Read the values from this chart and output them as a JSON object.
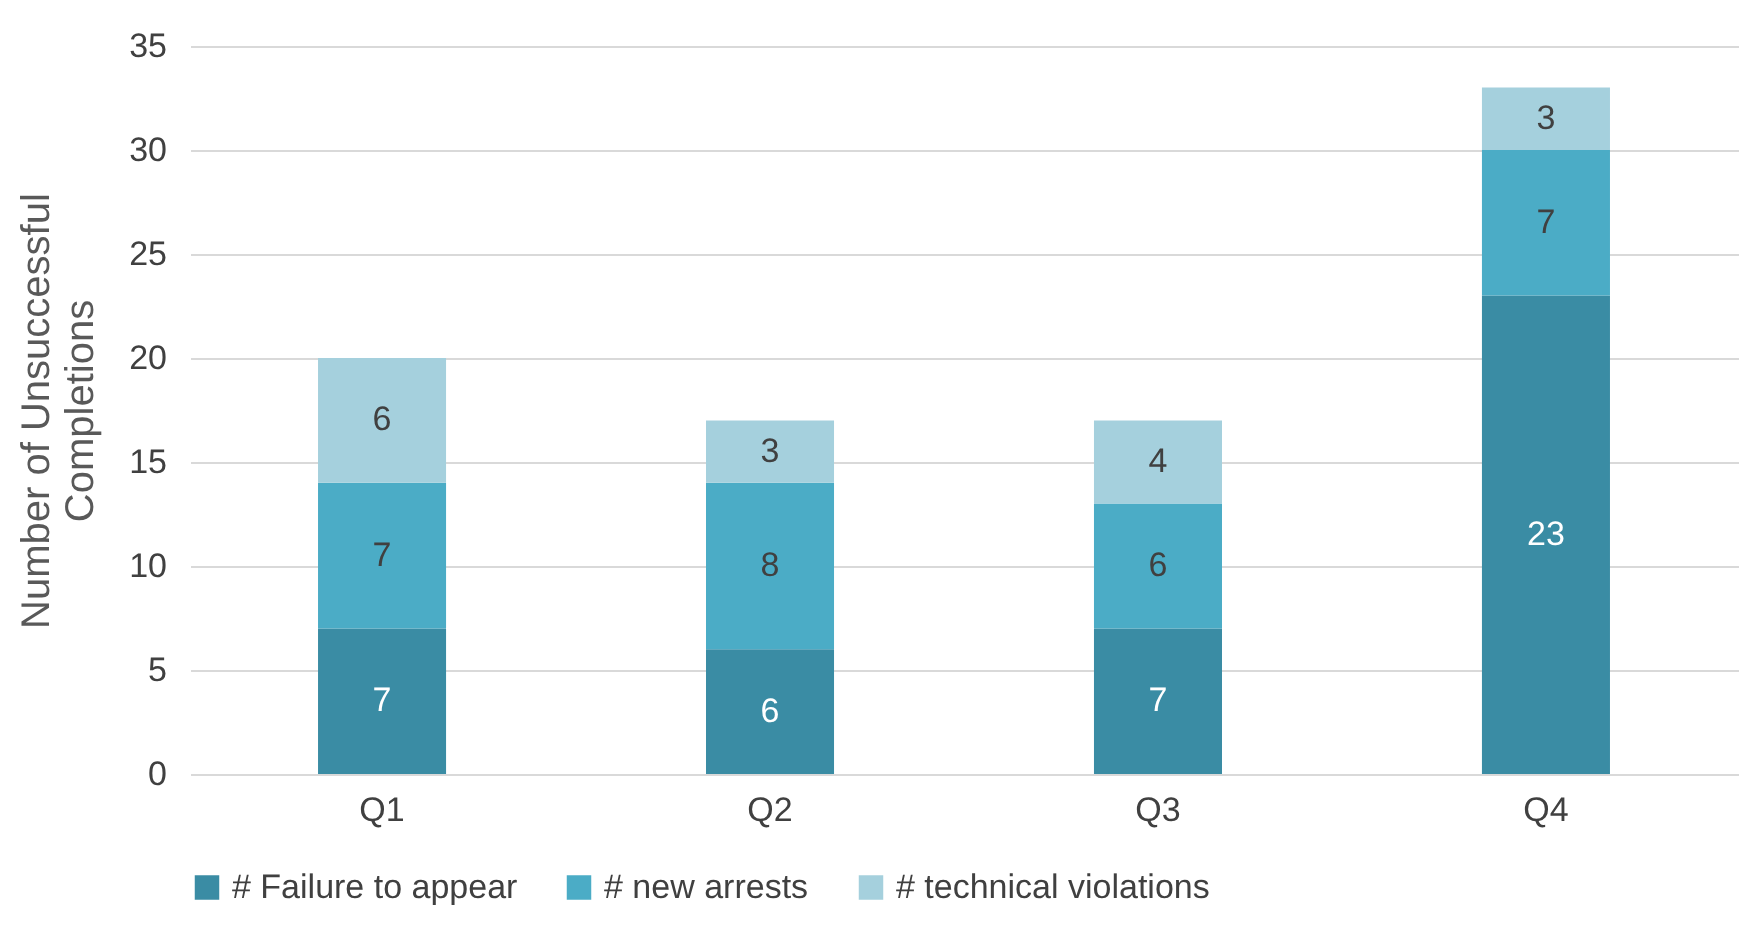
{
  "chart_data": {
    "type": "bar",
    "stacked": true,
    "ylabel": "Number of Unsuccessful Completions",
    "categories": [
      "Q1",
      "Q2",
      "Q3",
      "Q4"
    ],
    "series": [
      {
        "name": "# Failure to appear",
        "color": "#3a8ca4",
        "values": [
          7,
          6,
          7,
          23
        ]
      },
      {
        "name": "# new arrests",
        "color": "#4bacc6",
        "values": [
          7,
          8,
          6,
          7
        ]
      },
      {
        "name": "# technical violations",
        "color": "#a5d0dd",
        "values": [
          6,
          3,
          4,
          3
        ]
      }
    ],
    "ylim": [
      0,
      35
    ],
    "yticks": [
      0,
      5,
      10,
      15,
      20,
      25,
      30,
      35
    ],
    "grid": "y",
    "legend": "bottom",
    "data_labels": true
  }
}
